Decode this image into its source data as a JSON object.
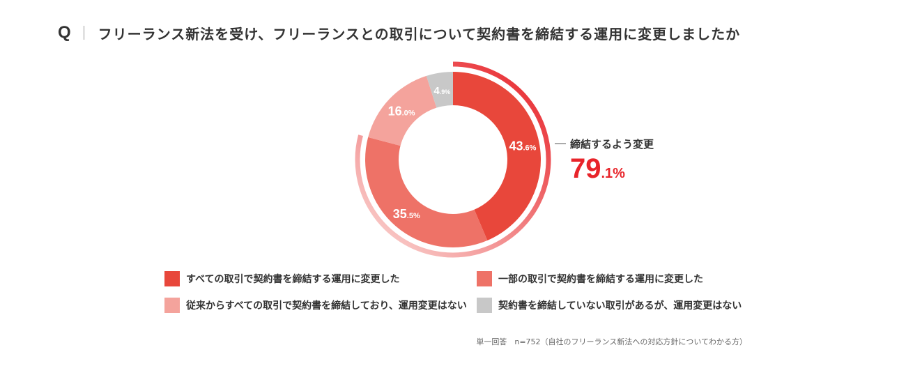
{
  "question": {
    "mark": "Q",
    "text": "フリーランス新法を受け、フリーランスとの取引について契約書を締結する運用に変更しましたか"
  },
  "chart_data": {
    "type": "pie",
    "donut": true,
    "slices": [
      {
        "label": "すべての取引で契約書を締結する運用に変更した",
        "value": 43.6,
        "int": "43",
        "dec": ".6%",
        "color": "#e8473b"
      },
      {
        "label": "一部の取引で契約書を締結する運用に変更した",
        "value": 35.5,
        "int": "35",
        "dec": ".5%",
        "color": "#ee7267"
      },
      {
        "label": "従来からすべての取引で契約書を締結しており、運用変更はない",
        "value": 16.0,
        "int": "16",
        "dec": ".0%",
        "color": "#f4a39c"
      },
      {
        "label": "契約書を締結していない取引があるが、運用変更はない",
        "value": 4.9,
        "int": "4",
        "dec": ".9%",
        "color": "#c8c8c8"
      }
    ],
    "annotation": {
      "label": "締結するよう変更",
      "value": 79.1,
      "int": "79",
      "dec": ".1%",
      "color": "#e8242a"
    }
  },
  "note": "単一回答　n=752（自社のフリーランス新法への対応方針についてわかる方）"
}
